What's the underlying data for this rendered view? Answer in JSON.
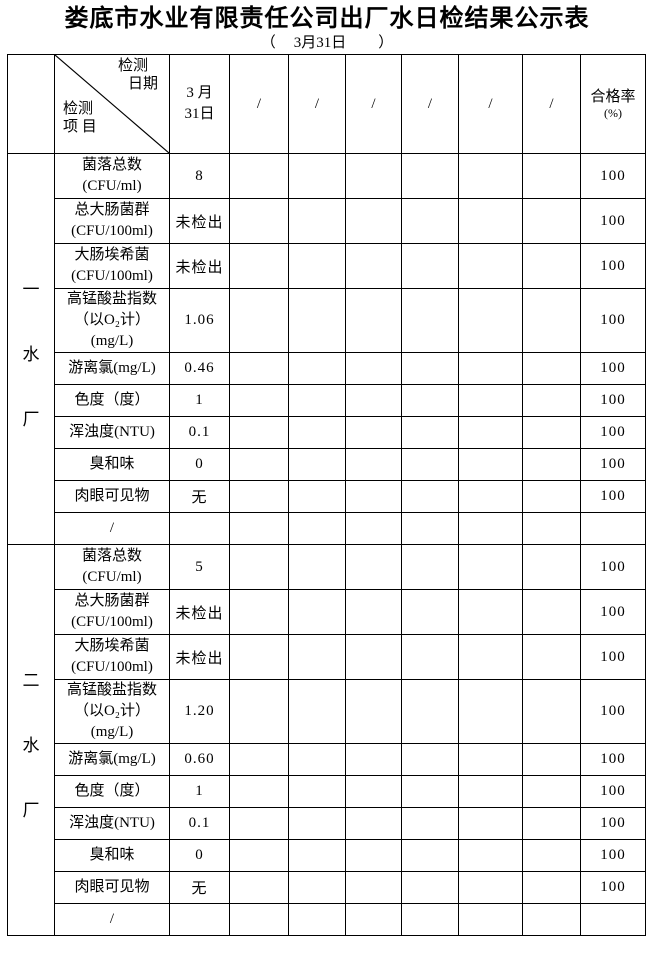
{
  "title": "娄底市水业有限责任公司出厂水日检结果公示表",
  "subtitle": {
    "open_paren": "（",
    "date": "3月31日",
    "close_paren": "）"
  },
  "colors": {
    "text": "#000000",
    "background": "#ffffff",
    "border": "#000000"
  },
  "table": {
    "header": {
      "diagonal": {
        "top_label_line1": "检测",
        "top_label_line2": "日期",
        "bottom_label_line1": "检测",
        "bottom_label_line2": "项 目"
      },
      "date_col_line1": "3 月",
      "date_col_line2": "31日",
      "empty_cols": [
        "/",
        "/",
        "/",
        "/",
        "/",
        "/"
      ],
      "rate_col_line1": "合格率",
      "rate_col_line2": "(%)"
    },
    "sections": [
      {
        "plant_name": "一水厂",
        "plant_chars": [
          "一",
          "水",
          "厂"
        ],
        "rows": [
          {
            "item_lines": [
              "菌落总数",
              "(CFU/ml)"
            ],
            "value": "8",
            "rate": "100"
          },
          {
            "item_lines": [
              "总大肠菌群",
              "(CFU/100ml)"
            ],
            "value": "未检出",
            "rate": "100"
          },
          {
            "item_lines": [
              "大肠埃希菌",
              "(CFU/100ml)"
            ],
            "value": "未检出",
            "rate": "100"
          },
          {
            "item_lines": [
              "高锰酸盐指数",
              "（以O₂计）",
              "(mg/L)"
            ],
            "value": "1.06",
            "rate": "100"
          },
          {
            "item_lines": [
              "游离氯(mg/L)"
            ],
            "value": "0.46",
            "rate": "100"
          },
          {
            "item_lines": [
              "色度（度）"
            ],
            "value": "1",
            "rate": "100"
          },
          {
            "item_lines": [
              "浑浊度(NTU)"
            ],
            "value": "0.1",
            "rate": "100"
          },
          {
            "item_lines": [
              "臭和味"
            ],
            "value": "0",
            "rate": "100"
          },
          {
            "item_lines": [
              "肉眼可见物"
            ],
            "value": "无",
            "rate": "100"
          },
          {
            "item_lines": [
              "/"
            ],
            "value": "",
            "rate": ""
          }
        ]
      },
      {
        "plant_name": "二水厂",
        "plant_chars": [
          "二",
          "水",
          "厂"
        ],
        "rows": [
          {
            "item_lines": [
              "菌落总数",
              "(CFU/ml)"
            ],
            "value": "5",
            "rate": "100"
          },
          {
            "item_lines": [
              "总大肠菌群",
              "(CFU/100ml)"
            ],
            "value": "未检出",
            "rate": "100"
          },
          {
            "item_lines": [
              "大肠埃希菌",
              "(CFU/100ml)"
            ],
            "value": "未检出",
            "rate": "100"
          },
          {
            "item_lines": [
              "高锰酸盐指数",
              "（以O₂计）",
              "(mg/L)"
            ],
            "value": "1.20",
            "rate": "100"
          },
          {
            "item_lines": [
              "游离氯(mg/L)"
            ],
            "value": "0.60",
            "rate": "100"
          },
          {
            "item_lines": [
              "色度（度）"
            ],
            "value": "1",
            "rate": "100"
          },
          {
            "item_lines": [
              "浑浊度(NTU)"
            ],
            "value": "0.1",
            "rate": "100"
          },
          {
            "item_lines": [
              "臭和味"
            ],
            "value": "0",
            "rate": "100"
          },
          {
            "item_lines": [
              "肉眼可见物"
            ],
            "value": "无",
            "rate": "100"
          },
          {
            "item_lines": [
              "/"
            ],
            "value": "",
            "rate": ""
          }
        ]
      }
    ]
  }
}
